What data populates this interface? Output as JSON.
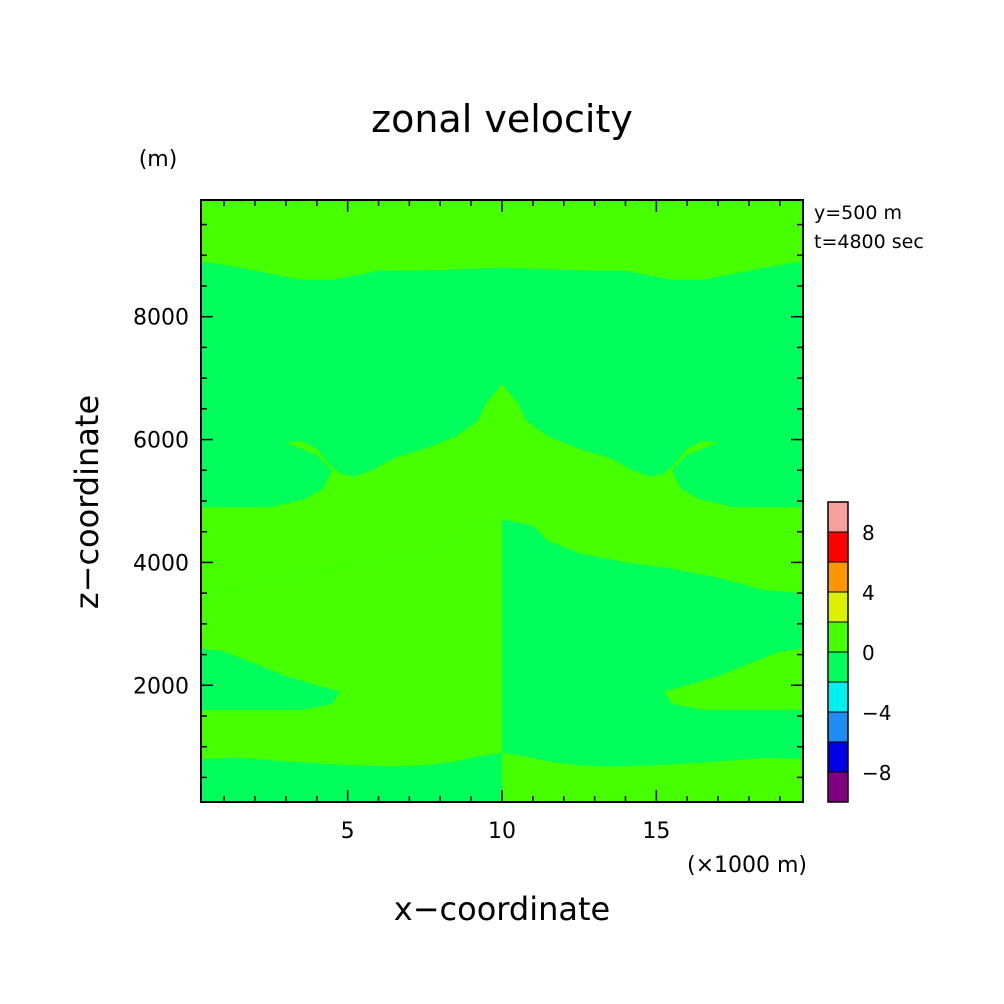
{
  "chart_data": {
    "type": "heatmap",
    "title": "zonal velocity",
    "xlabel": "x−coordinate",
    "ylabel": "z−coordinate",
    "x_unit": "(×1000 m)",
    "y_unit": "(m)",
    "annotations": [
      "y=500 m",
      "t=4800 sec"
    ],
    "xlim": [
      0.25,
      19.75
    ],
    "ylim": [
      100,
      9900
    ],
    "x_ticks": [
      5,
      10,
      15
    ],
    "x_tick_labels": [
      "5",
      "10",
      "15"
    ],
    "y_ticks": [
      2000,
      4000,
      6000,
      8000
    ],
    "y_tick_labels": [
      "2000",
      "4000",
      "6000",
      "8000"
    ],
    "colorbar": {
      "levels": [
        -10,
        -8,
        -6,
        -4,
        -2,
        0,
        2,
        4,
        6,
        8,
        10
      ],
      "tick_labels": [
        "8",
        "4",
        "0",
        "−4",
        "−8"
      ],
      "tick_values": [
        8,
        4,
        0,
        -4,
        -8
      ],
      "colors": [
        "#800080",
        "#0000e6",
        "#1e8cf0",
        "#00f0f0",
        "#00ff5a",
        "#46ff00",
        "#dcf000",
        "#ff9600",
        "#ff0000",
        "#f5a09b"
      ]
    },
    "contours": {
      "positive_fill": "#46ff00",
      "negative_fill": "#00ff5a",
      "background_value_range": [
        -2,
        0
      ],
      "regions_value_range": [
        0,
        2
      ],
      "positive_regions": [
        [
          [
            0.25,
            9900
          ],
          [
            10,
            9900
          ],
          [
            10,
            8800
          ],
          [
            9,
            8780
          ],
          [
            8,
            8760
          ],
          [
            7,
            8750
          ],
          [
            6,
            8750
          ],
          [
            5.5,
            8700
          ],
          [
            4.5,
            8600
          ],
          [
            3.5,
            8600
          ],
          [
            2.5,
            8700
          ],
          [
            1.5,
            8800
          ],
          [
            0.25,
            8900
          ]
        ],
        [
          [
            10,
            6900
          ],
          [
            9.5,
            6600
          ],
          [
            9.2,
            6300
          ],
          [
            8.5,
            6050
          ],
          [
            7.5,
            5850
          ],
          [
            6.5,
            5700
          ],
          [
            5.8,
            5500
          ],
          [
            5.2,
            5400
          ],
          [
            4.75,
            5450
          ],
          [
            4.4,
            5600
          ],
          [
            4,
            5850
          ],
          [
            3.5,
            5980
          ],
          [
            3,
            5950
          ],
          [
            4,
            5750
          ],
          [
            4.5,
            5500
          ],
          [
            4.2,
            5200
          ],
          [
            3.6,
            5030
          ],
          [
            2.5,
            4900
          ],
          [
            0.25,
            4900
          ],
          [
            0.25,
            3500
          ],
          [
            1.5,
            3550
          ],
          [
            3,
            3750
          ],
          [
            4.5,
            3900
          ],
          [
            6,
            4000
          ],
          [
            7.5,
            4150
          ],
          [
            8.5,
            4350
          ],
          [
            9,
            4600
          ],
          [
            10,
            4700
          ]
        ],
        [
          [
            10,
            4700
          ],
          [
            9,
            4600
          ],
          [
            8.5,
            4350
          ],
          [
            7.5,
            4150
          ],
          [
            6,
            4000
          ],
          [
            4.5,
            3900
          ],
          [
            3,
            3750
          ],
          [
            1.5,
            3550
          ],
          [
            0.25,
            3500
          ],
          [
            0.25,
            2600
          ],
          [
            1,
            2550
          ],
          [
            2,
            2350
          ],
          [
            3,
            2150
          ],
          [
            4,
            2000
          ],
          [
            4.75,
            1900
          ],
          [
            4.5,
            1700
          ],
          [
            3.5,
            1600
          ],
          [
            2,
            1600
          ],
          [
            0.25,
            1600
          ],
          [
            0.25,
            800
          ],
          [
            1.5,
            820
          ],
          [
            3,
            760
          ],
          [
            5,
            700
          ],
          [
            6.5,
            680
          ],
          [
            7.5,
            700
          ],
          [
            8.5,
            760
          ],
          [
            9.2,
            840
          ],
          [
            10,
            900
          ]
        ],
        [
          [
            10,
            0
          ],
          [
            10,
            9900
          ],
          [
            19.75,
            9900
          ],
          [
            19.75,
            0
          ]
        ]
      ],
      "negative_regions_in_right": [
        [
          [
            10,
            8800
          ],
          [
            11,
            8780
          ],
          [
            12,
            8760
          ],
          [
            13,
            8750
          ],
          [
            14,
            8750
          ],
          [
            14.5,
            8700
          ],
          [
            15.5,
            8600
          ],
          [
            16.5,
            8600
          ],
          [
            17.5,
            8700
          ],
          [
            18.5,
            8800
          ],
          [
            19.75,
            8900
          ],
          [
            19.75,
            4900
          ],
          [
            17.5,
            4900
          ],
          [
            16.4,
            5030
          ],
          [
            15.8,
            5200
          ],
          [
            15.5,
            5500
          ],
          [
            16,
            5750
          ],
          [
            17,
            5950
          ],
          [
            16.5,
            5980
          ],
          [
            16,
            5850
          ],
          [
            15.6,
            5600
          ],
          [
            15.25,
            5450
          ],
          [
            14.8,
            5400
          ],
          [
            14.2,
            5500
          ],
          [
            13.5,
            5700
          ],
          [
            12.5,
            5850
          ],
          [
            11.5,
            6050
          ],
          [
            10.8,
            6300
          ],
          [
            10.5,
            6600
          ],
          [
            10,
            6900
          ]
        ],
        [
          [
            10,
            4700
          ],
          [
            11,
            4600
          ],
          [
            11.5,
            4350
          ],
          [
            12.5,
            4150
          ],
          [
            14,
            4000
          ],
          [
            15.5,
            3900
          ],
          [
            17,
            3750
          ],
          [
            18.5,
            3550
          ],
          [
            19.75,
            3500
          ],
          [
            19.75,
            2600
          ],
          [
            19,
            2550
          ],
          [
            18,
            2350
          ],
          [
            17,
            2150
          ],
          [
            16,
            2000
          ],
          [
            15.25,
            1900
          ],
          [
            15.5,
            1700
          ],
          [
            16.5,
            1600
          ],
          [
            18,
            1600
          ],
          [
            19.75,
            1600
          ],
          [
            19.75,
            800
          ],
          [
            18.5,
            820
          ],
          [
            17,
            760
          ],
          [
            15,
            700
          ],
          [
            13.5,
            680
          ],
          [
            12.5,
            700
          ],
          [
            11.5,
            760
          ],
          [
            10.8,
            840
          ],
          [
            10,
            900
          ]
        ]
      ]
    }
  }
}
